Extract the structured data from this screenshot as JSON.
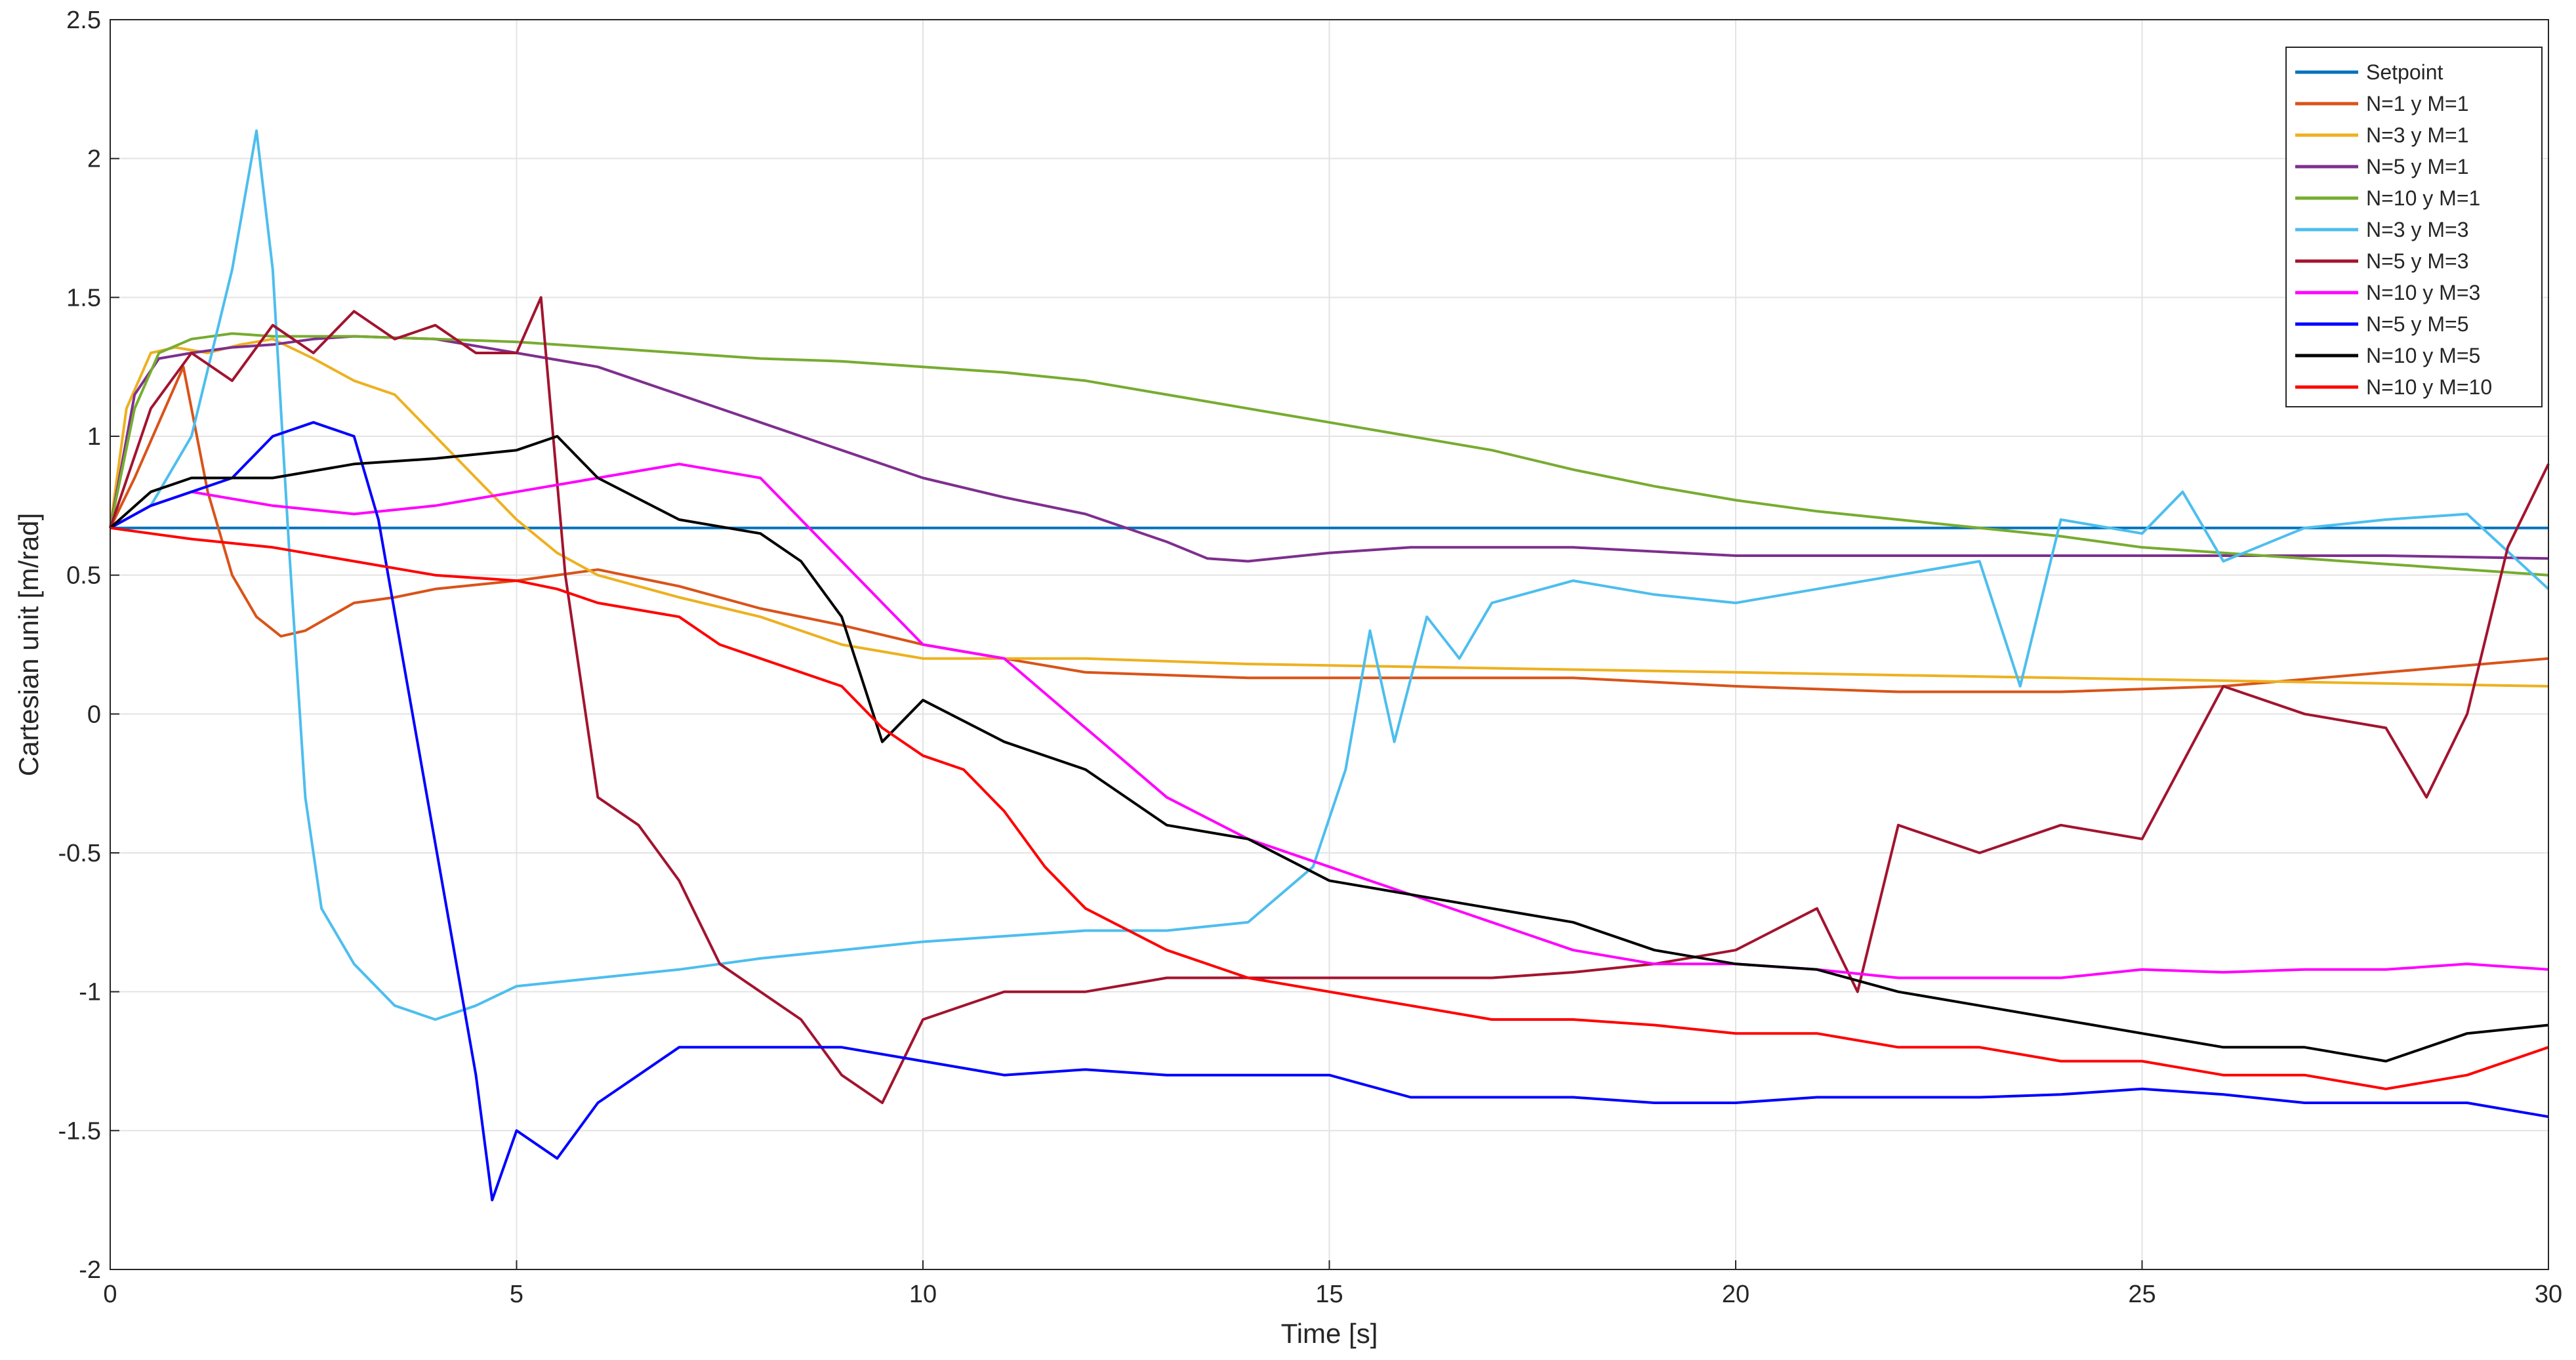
{
  "chart_data": {
    "type": "line",
    "xlabel": "Time [s]",
    "ylabel": "Cartesian unit [m/rad]",
    "xlim": [
      0,
      30
    ],
    "ylim": [
      -2,
      2.5
    ],
    "xticks": [
      "0",
      "5",
      "10",
      "15",
      "20",
      "25",
      "30"
    ],
    "yticks": [
      "-2",
      "-1.5",
      "-1",
      "-0.5",
      "0",
      "0.5",
      "1",
      "1.5",
      "2",
      "2.5"
    ],
    "grid": true,
    "legend_position": "top-right",
    "series": [
      {
        "name": "Setpoint",
        "color": "#0072BD",
        "x": [
          0,
          30
        ],
        "y": [
          0.67,
          0.67
        ]
      },
      {
        "name": "N=1 y M=1",
        "color": "#D95319",
        "x": [
          0,
          0.3,
          0.6,
          0.9,
          1.2,
          1.5,
          1.8,
          2.1,
          2.4,
          3,
          3.5,
          4,
          5,
          6,
          7,
          8,
          9,
          10,
          11,
          12,
          14,
          16,
          18,
          20,
          22,
          24,
          26,
          28,
          30
        ],
        "y": [
          0.67,
          0.85,
          1.05,
          1.25,
          0.8,
          0.5,
          0.35,
          0.28,
          0.3,
          0.4,
          0.42,
          0.45,
          0.48,
          0.52,
          0.46,
          0.38,
          0.32,
          0.25,
          0.2,
          0.15,
          0.13,
          0.13,
          0.13,
          0.1,
          0.08,
          0.08,
          0.1,
          0.15,
          0.2
        ]
      },
      {
        "name": "N=3 y M=1",
        "color": "#EDB120",
        "x": [
          0,
          0.2,
          0.5,
          0.8,
          1.2,
          1.6,
          2,
          2.5,
          3,
          3.5,
          4,
          4.5,
          5,
          5.5,
          6,
          7,
          8,
          9,
          10,
          11,
          12,
          14,
          16,
          18,
          20,
          22,
          24,
          26,
          28,
          30
        ],
        "y": [
          0.67,
          1.1,
          1.3,
          1.32,
          1.3,
          1.33,
          1.35,
          1.28,
          1.2,
          1.15,
          1.0,
          0.85,
          0.7,
          0.58,
          0.5,
          0.42,
          0.35,
          0.25,
          0.2,
          0.2,
          0.2,
          0.18,
          0.17,
          0.16,
          0.15,
          0.14,
          0.13,
          0.12,
          0.11,
          0.1
        ]
      },
      {
        "name": "N=5 y M=1",
        "color": "#7E2F8E",
        "x": [
          0,
          0.3,
          0.6,
          1,
          1.5,
          2,
          2.5,
          3,
          4,
          5,
          6,
          7,
          8,
          9,
          10,
          11,
          12,
          13,
          13.5,
          14,
          15,
          16,
          18,
          20,
          22,
          24,
          26,
          28,
          30
        ],
        "y": [
          0.67,
          1.15,
          1.28,
          1.3,
          1.32,
          1.33,
          1.35,
          1.36,
          1.35,
          1.3,
          1.25,
          1.15,
          1.05,
          0.95,
          0.85,
          0.78,
          0.72,
          0.62,
          0.56,
          0.55,
          0.58,
          0.6,
          0.6,
          0.57,
          0.57,
          0.57,
          0.57,
          0.57,
          0.56
        ]
      },
      {
        "name": "N=10 y M=1",
        "color": "#77AC30",
        "x": [
          0,
          0.3,
          0.6,
          1,
          1.5,
          2,
          3,
          4,
          5,
          6,
          7,
          8,
          9,
          10,
          11,
          12,
          13,
          14,
          15,
          16,
          17,
          18,
          19,
          20,
          21,
          22,
          23,
          24,
          25,
          26,
          27,
          28,
          29,
          30
        ],
        "y": [
          0.67,
          1.1,
          1.3,
          1.35,
          1.37,
          1.36,
          1.36,
          1.35,
          1.34,
          1.32,
          1.3,
          1.28,
          1.27,
          1.25,
          1.23,
          1.2,
          1.15,
          1.1,
          1.05,
          1.0,
          0.95,
          0.88,
          0.82,
          0.77,
          0.73,
          0.7,
          0.67,
          0.64,
          0.6,
          0.58,
          0.56,
          0.54,
          0.52,
          0.5
        ]
      },
      {
        "name": "N=3 y M=3",
        "color": "#4DBEEE",
        "x": [
          0,
          0.5,
          1,
          1.5,
          1.8,
          2.0,
          2.2,
          2.4,
          2.6,
          3,
          3.5,
          4,
          4.5,
          5,
          6,
          7,
          8,
          9,
          10,
          11,
          12,
          13,
          14,
          14.8,
          15.2,
          15.5,
          15.8,
          16.2,
          16.6,
          17,
          18,
          19,
          20,
          21,
          22,
          23,
          23.5,
          24,
          25,
          25.5,
          26,
          27,
          28,
          29,
          30
        ],
        "y": [
          0.67,
          0.75,
          1.0,
          1.6,
          2.1,
          1.6,
          0.6,
          -0.3,
          -0.7,
          -0.9,
          -1.05,
          -1.1,
          -1.05,
          -0.98,
          -0.95,
          -0.92,
          -0.88,
          -0.85,
          -0.82,
          -0.8,
          -0.78,
          -0.78,
          -0.75,
          -0.55,
          -0.2,
          0.3,
          -0.1,
          0.35,
          0.2,
          0.4,
          0.48,
          0.43,
          0.4,
          0.45,
          0.5,
          0.55,
          0.1,
          0.7,
          0.65,
          0.8,
          0.55,
          0.67,
          0.7,
          0.72,
          0.45
        ]
      },
      {
        "name": "N=5 y M=3",
        "color": "#A2142F",
        "x": [
          0,
          0.5,
          1,
          1.5,
          2,
          2.5,
          3,
          3.5,
          4,
          4.5,
          5,
          5.3,
          5.6,
          6,
          6.5,
          7,
          7.5,
          8,
          8.5,
          9,
          9.5,
          10,
          11,
          12,
          13,
          14,
          15,
          16,
          17,
          18,
          19,
          20,
          21,
          21.5,
          22,
          23,
          24,
          25,
          26,
          27,
          28,
          28.5,
          29,
          29.5,
          30
        ],
        "y": [
          0.67,
          1.1,
          1.3,
          1.2,
          1.4,
          1.3,
          1.45,
          1.35,
          1.4,
          1.3,
          1.3,
          1.5,
          0.5,
          -0.3,
          -0.4,
          -0.6,
          -0.9,
          -1.0,
          -1.1,
          -1.3,
          -1.4,
          -1.1,
          -1.0,
          -1.0,
          -0.95,
          -0.95,
          -0.95,
          -0.95,
          -0.95,
          -0.93,
          -0.9,
          -0.85,
          -0.7,
          -1.0,
          -0.4,
          -0.5,
          -0.4,
          -0.45,
          0.1,
          0.0,
          -0.05,
          -0.3,
          0.0,
          0.6,
          0.9
        ]
      },
      {
        "name": "N=10 y M=3",
        "color": "#FF00FF",
        "x": [
          0,
          0.5,
          1,
          2,
          3,
          4,
          5,
          6,
          7,
          8,
          9,
          9.5,
          10,
          11,
          12,
          13,
          14,
          15,
          16,
          17,
          18,
          19,
          20,
          21,
          22,
          23,
          24,
          25,
          26,
          27,
          28,
          29,
          30
        ],
        "y": [
          0.67,
          0.75,
          0.8,
          0.75,
          0.72,
          0.75,
          0.8,
          0.85,
          0.9,
          0.85,
          0.55,
          0.4,
          0.25,
          0.2,
          -0.05,
          -0.3,
          -0.45,
          -0.55,
          -0.65,
          -0.75,
          -0.85,
          -0.9,
          -0.9,
          -0.92,
          -0.95,
          -0.95,
          -0.95,
          -0.92,
          -0.93,
          -0.92,
          -0.92,
          -0.9,
          -0.92
        ]
      },
      {
        "name": "N=5 y M=5",
        "color": "#0000FF",
        "x": [
          0,
          0.5,
          1,
          1.5,
          2,
          2.5,
          3,
          3.3,
          3.6,
          3.9,
          4.2,
          4.5,
          4.7,
          5,
          5.5,
          6,
          6.5,
          7,
          8,
          9,
          10,
          11,
          12,
          13,
          14,
          15,
          16,
          17,
          18,
          19,
          20,
          21,
          22,
          23,
          24,
          25,
          26,
          27,
          28,
          29,
          30
        ],
        "y": [
          0.67,
          0.75,
          0.8,
          0.85,
          1.0,
          1.05,
          1.0,
          0.7,
          0.2,
          -0.3,
          -0.8,
          -1.3,
          -1.75,
          -1.5,
          -1.6,
          -1.4,
          -1.3,
          -1.2,
          -1.2,
          -1.2,
          -1.25,
          -1.3,
          -1.28,
          -1.3,
          -1.3,
          -1.3,
          -1.38,
          -1.38,
          -1.38,
          -1.4,
          -1.4,
          -1.38,
          -1.38,
          -1.38,
          -1.37,
          -1.35,
          -1.37,
          -1.4,
          -1.4,
          -1.4,
          -1.45
        ]
      },
      {
        "name": "N=10 y M=5",
        "color": "#000000",
        "x": [
          0,
          0.5,
          1,
          2,
          3,
          4,
          5,
          5.5,
          6,
          7,
          8,
          8.5,
          9,
          9.5,
          10,
          11,
          12,
          13,
          14,
          15,
          16,
          17,
          18,
          19,
          20,
          21,
          22,
          23,
          24,
          25,
          26,
          27,
          28,
          29,
          30
        ],
        "y": [
          0.67,
          0.8,
          0.85,
          0.85,
          0.9,
          0.92,
          0.95,
          1.0,
          0.85,
          0.7,
          0.65,
          0.55,
          0.35,
          -0.1,
          0.05,
          -0.1,
          -0.2,
          -0.4,
          -0.45,
          -0.6,
          -0.65,
          -0.7,
          -0.75,
          -0.85,
          -0.9,
          -0.92,
          -1.0,
          -1.05,
          -1.1,
          -1.15,
          -1.2,
          -1.2,
          -1.25,
          -1.15,
          -1.12
        ]
      },
      {
        "name": "N=10 y M=10",
        "color": "#FF0000",
        "x": [
          0,
          0.5,
          1,
          2,
          3,
          4,
          5,
          5.5,
          6,
          7,
          7.5,
          8,
          8.5,
          9,
          9.5,
          10,
          10.5,
          11,
          11.5,
          12,
          13,
          14,
          15,
          16,
          17,
          18,
          19,
          20,
          21,
          22,
          23,
          24,
          25,
          26,
          27,
          28,
          29,
          30
        ],
        "y": [
          0.67,
          0.65,
          0.63,
          0.6,
          0.55,
          0.5,
          0.48,
          0.45,
          0.4,
          0.35,
          0.25,
          0.2,
          0.15,
          0.1,
          -0.05,
          -0.15,
          -0.2,
          -0.35,
          -0.55,
          -0.7,
          -0.85,
          -0.95,
          -1.0,
          -1.05,
          -1.1,
          -1.1,
          -1.12,
          -1.15,
          -1.15,
          -1.2,
          -1.2,
          -1.25,
          -1.25,
          -1.3,
          -1.3,
          -1.35,
          -1.3,
          -1.2
        ]
      }
    ]
  }
}
